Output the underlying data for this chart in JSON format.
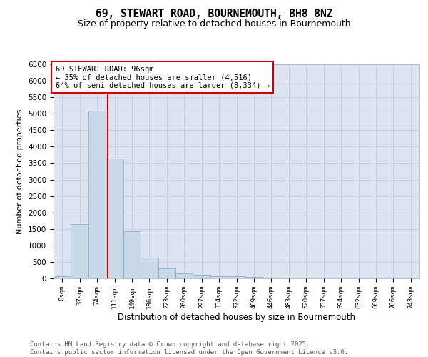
{
  "title_line1": "69, STEWART ROAD, BOURNEMOUTH, BH8 8NZ",
  "title_line2": "Size of property relative to detached houses in Bournemouth",
  "xlabel": "Distribution of detached houses by size in Bournemouth",
  "ylabel": "Number of detached properties",
  "bar_labels": [
    "0sqm",
    "37sqm",
    "74sqm",
    "111sqm",
    "149sqm",
    "186sqm",
    "223sqm",
    "260sqm",
    "297sqm",
    "334sqm",
    "372sqm",
    "409sqm",
    "446sqm",
    "483sqm",
    "520sqm",
    "557sqm",
    "594sqm",
    "632sqm",
    "669sqm",
    "706sqm",
    "743sqm"
  ],
  "bar_values": [
    75,
    1650,
    5100,
    3630,
    1440,
    620,
    310,
    155,
    100,
    75,
    55,
    45,
    10,
    5,
    3,
    2,
    1,
    1,
    0,
    0,
    0
  ],
  "bar_color": "#c9d9e8",
  "bar_edgecolor": "#7aaac8",
  "ylim": [
    0,
    6500
  ],
  "yticks": [
    0,
    500,
    1000,
    1500,
    2000,
    2500,
    3000,
    3500,
    4000,
    4500,
    5000,
    5500,
    6000,
    6500
  ],
  "vline_color": "#cc0000",
  "annotation_title": "69 STEWART ROAD: 96sqm",
  "annotation_line2": "← 35% of detached houses are smaller (4,516)",
  "annotation_line3": "64% of semi-detached houses are larger (8,334) →",
  "annotation_box_color": "#cc0000",
  "annotation_bg": "#ffffff",
  "grid_color": "#c0c8e0",
  "background_color": "#dde3f0",
  "footer_line1": "Contains HM Land Registry data © Crown copyright and database right 2025.",
  "footer_line2": "Contains public sector information licensed under the Open Government Licence v3.0.",
  "title_fontsize": 10.5,
  "subtitle_fontsize": 9,
  "annotation_fontsize": 7.5,
  "footer_fontsize": 6.5,
  "ylabel_fontsize": 8,
  "xlabel_fontsize": 8.5
}
